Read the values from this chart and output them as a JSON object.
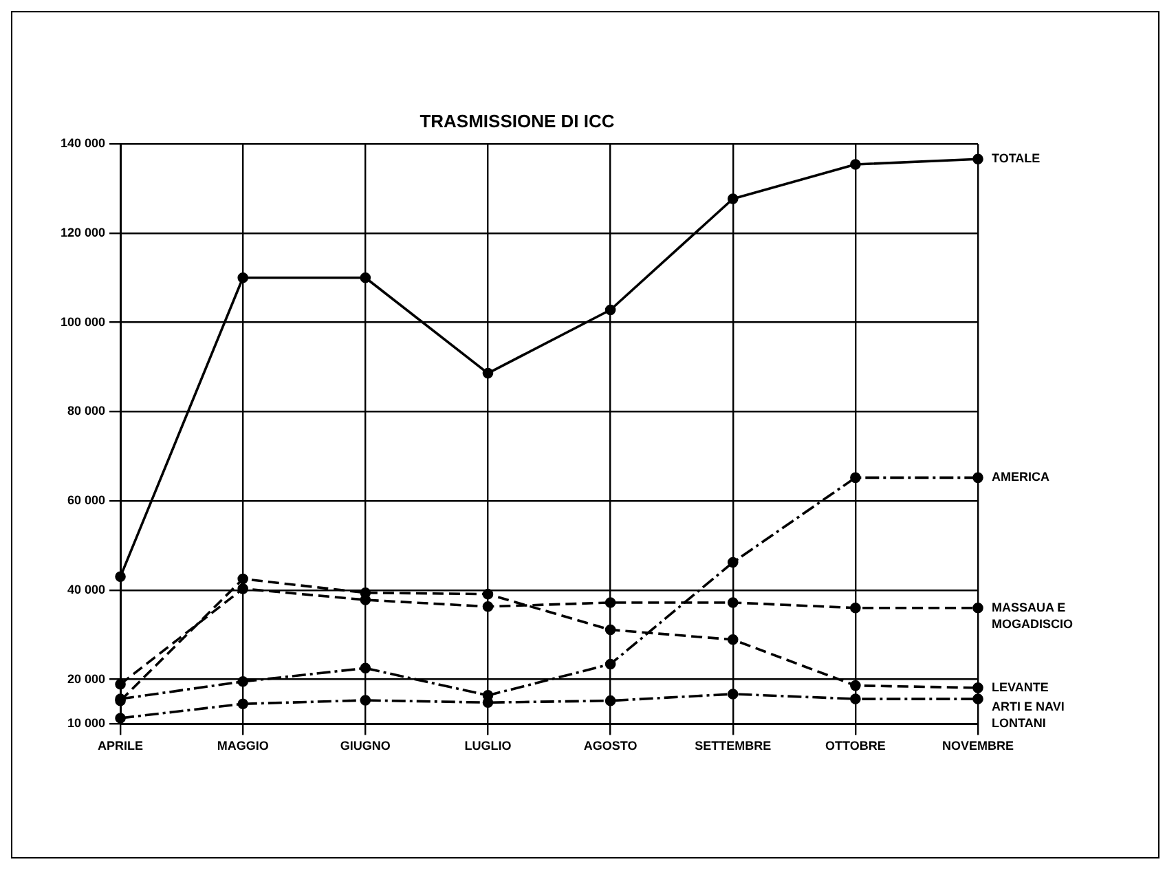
{
  "chart_data": {
    "type": "line",
    "title": "TRASMISSIONE DI ICC",
    "categories": [
      "APRILE",
      "MAGGIO",
      "GIUGNO",
      "LUGLIO",
      "AGOSTO",
      "SETTEMBRE",
      "OTTOBRE",
      "NOVEMBRE"
    ],
    "series": [
      {
        "name": "TOTALE",
        "color": "#000000",
        "line_style": "solid",
        "values": [
          43000,
          110000,
          110000,
          88600,
          102800,
          127700,
          135400,
          136600
        ]
      },
      {
        "name": "AMERICA",
        "color": "#000000",
        "line_style": "dotted",
        "values": [
          15600,
          19500,
          22500,
          16400,
          23400,
          46200,
          65200,
          65200
        ]
      },
      {
        "name": "MASSAUA E MOGADISCIO",
        "color": "#000000",
        "line_style": "dashed",
        "values": [
          18900,
          40300,
          37800,
          36300,
          37200,
          37200,
          36000,
          36000
        ]
      },
      {
        "name": "LEVANTE",
        "color": "#000000",
        "line_style": "dashed",
        "values": [
          15200,
          42500,
          39400,
          39100,
          31100,
          28900,
          18600,
          18100
        ]
      },
      {
        "name": "ARTI E NAVI LONTANI",
        "color": "#000000",
        "line_style": "dotted",
        "values": [
          11300,
          14500,
          15300,
          14800,
          15200,
          16700,
          15600,
          15600
        ]
      }
    ],
    "ylim": [
      10000,
      140000
    ],
    "yticks": [
      {
        "value": 10000,
        "label": "10 000"
      },
      {
        "value": 20000,
        "label": "20 000"
      },
      {
        "value": 40000,
        "label": "40 000"
      },
      {
        "value": 60000,
        "label": "60 000"
      },
      {
        "value": 80000,
        "label": "80 000"
      },
      {
        "value": 100000,
        "label": "100 000"
      },
      {
        "value": 120000,
        "label": "120 000"
      },
      {
        "value": 140000,
        "label": "140 000"
      }
    ],
    "grid": true,
    "legend": false,
    "marker": "circle"
  }
}
